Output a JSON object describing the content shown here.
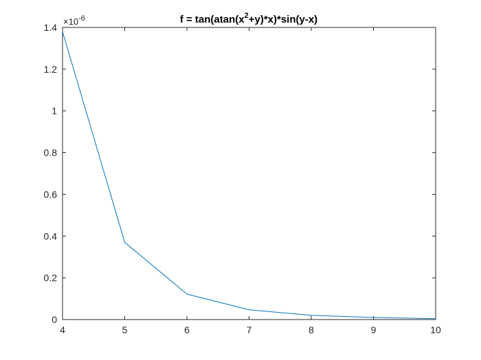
{
  "chart_data": {
    "type": "line",
    "title": {
      "prefix": "f = tan(atan(x",
      "superscript": "2",
      "suffix": "+y)*x)*sin(y-x)"
    },
    "xlabel": "",
    "ylabel": "",
    "xlim": [
      4,
      10
    ],
    "ylim": [
      0,
      1.4
    ],
    "y_exponent_label": {
      "multiplier": "×10",
      "exponent": "-6"
    },
    "x_ticks": [
      4,
      5,
      6,
      7,
      8,
      9,
      10
    ],
    "x_tick_labels": [
      "4",
      "5",
      "6",
      "7",
      "8",
      "9",
      "10"
    ],
    "y_ticks": [
      0,
      0.2,
      0.4,
      0.6,
      0.8,
      1,
      1.2,
      1.4
    ],
    "y_tick_labels": [
      "0",
      "0.2",
      "0.4",
      "0.6",
      "0.8",
      "1",
      "1.2",
      "1.4"
    ],
    "grid": false,
    "series": [
      {
        "x": [
          4,
          5,
          6,
          7,
          8,
          9,
          10
        ],
        "y": [
          1.38,
          0.37,
          0.122,
          0.047,
          0.02,
          0.01,
          0.004
        ],
        "color": "#0072BD"
      }
    ]
  }
}
